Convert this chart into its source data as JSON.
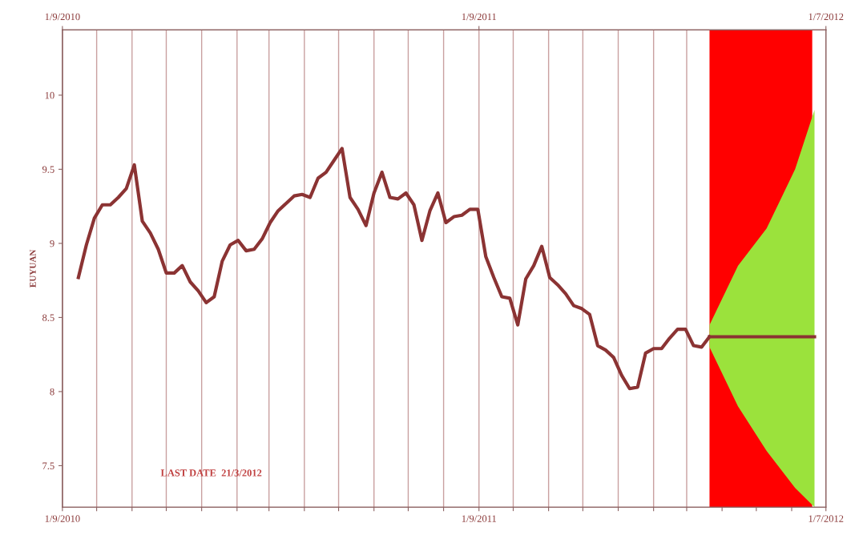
{
  "chart_data": {
    "type": "line",
    "ylabel": "EUYUAN",
    "xlim": [
      "2010-09-01",
      "2012-07-01"
    ],
    "x2lim": [
      "2010-09-01",
      "2012-07-01"
    ],
    "xticks": [
      {
        "value": "2010-09-01",
        "label": "1/9/2010"
      },
      {
        "value": "2010-10-01",
        "label": null
      },
      {
        "value": "2010-11-01",
        "label": null
      },
      {
        "value": "2010-12-01",
        "label": null
      },
      {
        "value": "2011-01-01",
        "label": null
      },
      {
        "value": "2011-02-01",
        "label": null
      },
      {
        "value": "2011-03-01",
        "label": null
      },
      {
        "value": "2011-04-01",
        "label": null
      },
      {
        "value": "2011-05-01",
        "label": null
      },
      {
        "value": "2011-06-01",
        "label": null
      },
      {
        "value": "2011-07-01",
        "label": null
      },
      {
        "value": "2011-08-01",
        "label": null
      },
      {
        "value": "2011-09-01",
        "label": "1/9/2011"
      },
      {
        "value": "2011-10-01",
        "label": null
      },
      {
        "value": "2011-11-01",
        "label": null
      },
      {
        "value": "2011-12-01",
        "label": null
      },
      {
        "value": "2012-01-01",
        "label": null
      },
      {
        "value": "2012-02-01",
        "label": null
      },
      {
        "value": "2012-03-01",
        "label": null
      },
      {
        "value": "2012-04-01",
        "label": null
      },
      {
        "value": "2012-05-01",
        "label": null
      },
      {
        "value": "2012-06-01",
        "label": null
      },
      {
        "value": "2012-07-01",
        "label": "1/7/2012"
      }
    ],
    "x2ticks": [
      {
        "value": "2010-09-01",
        "label": "1/9/2010"
      },
      {
        "value": "2011-09-01",
        "label": "1/9/2011"
      },
      {
        "value": "2012-07-01",
        "label": "1/7/2012"
      }
    ],
    "ylim": [
      7.22,
      10.44
    ],
    "yticks": [
      {
        "value": 7.5,
        "label": "7.5"
      },
      {
        "value": 8,
        "label": "8"
      },
      {
        "value": 8.5,
        "label": "8.5"
      },
      {
        "value": 9,
        "label": "9"
      },
      {
        "value": 9.5,
        "label": "9.5"
      },
      {
        "value": 10,
        "label": "10"
      }
    ],
    "grid": "x",
    "legend": false,
    "marker": "none",
    "line_style": "solid",
    "bands": [
      {
        "axis": "x",
        "from": "2012-03-21",
        "to": "2012-06-19",
        "color": "#ff0000"
      }
    ],
    "annotations": [
      "LAST DATE  21/3/2012"
    ],
    "series": [
      {
        "color": "#8b3333",
        "x": [
          "2010-09-15",
          "2010-09-22",
          "2010-09-29",
          "2010-10-06",
          "2010-10-13",
          "2010-10-20",
          "2010-10-27",
          "2010-11-03",
          "2010-11-10",
          "2010-11-17",
          "2010-11-24",
          "2010-12-01",
          "2010-12-08",
          "2010-12-15",
          "2010-12-22",
          "2010-12-29",
          "2011-01-05",
          "2011-01-12",
          "2011-01-19",
          "2011-01-26",
          "2011-02-02",
          "2011-02-09",
          "2011-02-16",
          "2011-02-23",
          "2011-03-02",
          "2011-03-09",
          "2011-03-16",
          "2011-03-23",
          "2011-03-30",
          "2011-04-06",
          "2011-04-13",
          "2011-04-20",
          "2011-04-27",
          "2011-05-04",
          "2011-05-11",
          "2011-05-18",
          "2011-05-25",
          "2011-06-01",
          "2011-06-08",
          "2011-06-15",
          "2011-06-22",
          "2011-06-29",
          "2011-07-06",
          "2011-07-13",
          "2011-07-20",
          "2011-07-27",
          "2011-08-03",
          "2011-08-10",
          "2011-08-17",
          "2011-08-24",
          "2011-08-31",
          "2011-09-07",
          "2011-09-14",
          "2011-09-21",
          "2011-09-28",
          "2011-10-05",
          "2011-10-12",
          "2011-10-19",
          "2011-10-26",
          "2011-11-02",
          "2011-11-09",
          "2011-11-16",
          "2011-11-23",
          "2011-11-30",
          "2011-12-07",
          "2011-12-14",
          "2011-12-21",
          "2011-12-28",
          "2012-01-04",
          "2012-01-11",
          "2012-01-18",
          "2012-01-25",
          "2012-02-01",
          "2012-02-08",
          "2012-02-15",
          "2012-02-22",
          "2012-02-29",
          "2012-03-07",
          "2012-03-14",
          "2012-03-21"
        ],
        "values": [
          8.77,
          8.99,
          9.17,
          9.26,
          9.26,
          9.31,
          9.37,
          9.53,
          9.15,
          9.07,
          8.96,
          8.8,
          8.8,
          8.85,
          8.74,
          8.68,
          8.6,
          8.64,
          8.88,
          8.99,
          9.02,
          8.95,
          8.96,
          9.03,
          9.14,
          9.22,
          9.27,
          9.32,
          9.33,
          9.31,
          9.44,
          9.48,
          9.56,
          9.64,
          9.31,
          9.23,
          9.12,
          9.34,
          9.48,
          9.31,
          9.3,
          9.34,
          9.26,
          9.02,
          9.22,
          9.34,
          9.14,
          9.18,
          9.19,
          9.23,
          9.23,
          8.91,
          8.77,
          8.64,
          8.63,
          8.45,
          8.76,
          8.85,
          8.98,
          8.77,
          8.72,
          8.66,
          8.58,
          8.56,
          8.52,
          8.31,
          8.28,
          8.23,
          8.11,
          8.02,
          8.03,
          8.26,
          8.29,
          8.29,
          8.36,
          8.42,
          8.42,
          8.31,
          8.3,
          8.37
        ]
      },
      {
        "color": "#8b3333",
        "x": [
          "2012-03-21",
          "2012-04-15",
          "2012-05-10",
          "2012-06-04",
          "2012-06-21"
        ],
        "values": [
          8.37,
          8.37,
          8.37,
          8.37,
          8.37
        ],
        "lower": [
          8.3,
          7.9,
          7.6,
          7.35,
          7.22
        ],
        "upper": [
          8.45,
          8.85,
          9.1,
          9.5,
          9.9
        ]
      }
    ]
  }
}
